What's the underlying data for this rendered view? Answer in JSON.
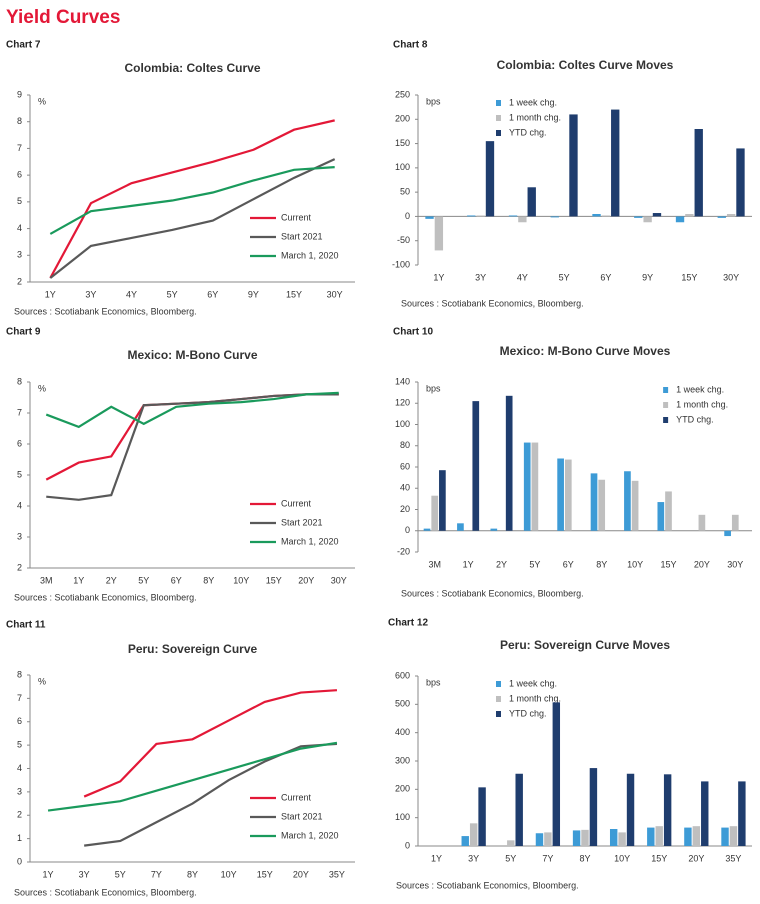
{
  "header": {
    "title": "Yield Curves"
  },
  "chart_data": [
    {
      "type": "line",
      "chart_label": "Chart 7",
      "title": "Colombia:  Coltes Curve",
      "unit": "%",
      "categories": [
        "1Y",
        "3Y",
        "4Y",
        "5Y",
        "6Y",
        "9Y",
        "15Y",
        "30Y"
      ],
      "series": [
        {
          "name": "Current",
          "color": "#e31837",
          "values": [
            2.15,
            4.95,
            5.7,
            6.1,
            6.5,
            6.95,
            7.7,
            8.05
          ]
        },
        {
          "name": "Start 2021",
          "color": "#595959",
          "values": [
            2.15,
            3.35,
            3.65,
            3.95,
            4.3,
            5.1,
            5.9,
            6.6
          ]
        },
        {
          "name": "March 1, 2020",
          "color": "#1a9a5c",
          "values": [
            3.8,
            4.65,
            4.85,
            5.05,
            5.35,
            5.8,
            6.2,
            6.3
          ]
        }
      ],
      "ylim": [
        2,
        9
      ],
      "yticks": [
        2,
        3,
        4,
        5,
        6,
        7,
        8,
        9
      ],
      "legend": "lower right",
      "source": "Sources : Scotiabank Economics, Bloomberg."
    },
    {
      "type": "bar",
      "chart_label": "Chart 8",
      "title": "Colombia:  Coltes Curve Moves",
      "unit": "bps",
      "categories": [
        "1Y",
        "3Y",
        "4Y",
        "5Y",
        "6Y",
        "9Y",
        "15Y",
        "30Y"
      ],
      "series": [
        {
          "name": "1 week chg.",
          "color": "#3d9bd6",
          "values": [
            -5,
            2,
            2,
            -2,
            5,
            -3,
            -12,
            -3
          ]
        },
        {
          "name": "1 month chg.",
          "color": "#bfbfbf",
          "values": [
            -70,
            2,
            -12,
            0,
            2,
            -12,
            5,
            5
          ]
        },
        {
          "name": "YTD chg.",
          "color": "#1f3d6e",
          "values": [
            0,
            155,
            60,
            210,
            220,
            7,
            180,
            140
          ]
        }
      ],
      "ylim": [
        -100,
        250
      ],
      "yticks": [
        -100,
        -50,
        0,
        50,
        100,
        150,
        200,
        250
      ],
      "legend": "upper left",
      "source": "Sources : Scotiabank Economics, Bloomberg."
    },
    {
      "type": "line",
      "chart_label": "Chart 9",
      "title": "Mexico:  M-Bono Curve",
      "unit": "%",
      "categories": [
        "3M",
        "1Y",
        "2Y",
        "5Y",
        "6Y",
        "8Y",
        "10Y",
        "15Y",
        "20Y",
        "30Y"
      ],
      "series": [
        {
          "name": "Current",
          "color": "#e31837",
          "values": [
            4.85,
            5.4,
            5.6,
            7.25,
            7.3,
            7.35,
            7.45,
            7.55,
            7.6,
            7.6
          ]
        },
        {
          "name": "Start 2021",
          "color": "#595959",
          "values": [
            4.3,
            4.2,
            4.35,
            7.25,
            7.3,
            7.35,
            7.45,
            7.55,
            7.6,
            7.6
          ]
        },
        {
          "name": "March 1, 2020",
          "color": "#1a9a5c",
          "values": [
            6.95,
            6.55,
            7.2,
            6.65,
            7.2,
            7.3,
            7.35,
            7.45,
            7.6,
            7.65
          ]
        }
      ],
      "ylim": [
        2,
        8
      ],
      "yticks": [
        2,
        3,
        4,
        5,
        6,
        7,
        8
      ],
      "legend": "lower right",
      "source": "Sources : Scotiabank Economics, Bloomberg."
    },
    {
      "type": "bar",
      "chart_label": "Chart 10",
      "title": "Mexico:  M-Bono Curve Moves",
      "unit": "bps",
      "categories": [
        "3M",
        "1Y",
        "2Y",
        "5Y",
        "6Y",
        "8Y",
        "10Y",
        "15Y",
        "20Y",
        "30Y"
      ],
      "series": [
        {
          "name": "1 week chg.",
          "color": "#3d9bd6",
          "values": [
            2,
            7,
            2,
            83,
            68,
            54,
            56,
            27,
            0,
            -5
          ]
        },
        {
          "name": "1 month chg.",
          "color": "#bfbfbf",
          "values": [
            33,
            0,
            0,
            83,
            67,
            48,
            47,
            37,
            15,
            15
          ]
        },
        {
          "name": "YTD chg.",
          "color": "#1f3d6e",
          "values": [
            57,
            122,
            127,
            0,
            0,
            0,
            0,
            0,
            0,
            0
          ]
        }
      ],
      "ylim": [
        -20,
        140
      ],
      "yticks": [
        -20,
        0,
        20,
        40,
        60,
        80,
        100,
        120,
        140
      ],
      "legend": "upper right",
      "source": "Sources : Scotiabank Economics, Bloomberg."
    },
    {
      "type": "line",
      "chart_label": "Chart 11",
      "title": "Peru:  Sovereign Curve",
      "unit": "%",
      "categories": [
        "1Y",
        "3Y",
        "5Y",
        "7Y",
        "8Y",
        "10Y",
        "15Y",
        "20Y",
        "35Y"
      ],
      "series": [
        {
          "name": "Current",
          "color": "#e31837",
          "values": [
            null,
            2.8,
            3.45,
            5.05,
            5.25,
            6.05,
            6.85,
            7.25,
            7.35
          ]
        },
        {
          "name": "Start 2021",
          "color": "#595959",
          "values": [
            null,
            0.7,
            0.9,
            1.7,
            2.5,
            3.5,
            4.3,
            4.95,
            5.05
          ]
        },
        {
          "name": "March 1, 2020",
          "color": "#1a9a5c",
          "values": [
            2.2,
            2.4,
            2.6,
            3.05,
            3.5,
            3.95,
            4.4,
            4.85,
            5.1
          ]
        }
      ],
      "ylim": [
        0,
        8
      ],
      "yticks": [
        0,
        1,
        2,
        3,
        4,
        5,
        6,
        7,
        8
      ],
      "legend": "lower right",
      "source": "Sources : Scotiabank Economics, Bloomberg."
    },
    {
      "type": "bar",
      "chart_label": "Chart 12",
      "title": "Peru:  Sovereign Curve Moves",
      "unit": "bps",
      "categories": [
        "1Y",
        "3Y",
        "5Y",
        "7Y",
        "8Y",
        "10Y",
        "15Y",
        "20Y",
        "35Y"
      ],
      "series": [
        {
          "name": "1 week chg.",
          "color": "#3d9bd6",
          "values": [
            null,
            35,
            0,
            45,
            55,
            60,
            65,
            65,
            65
          ]
        },
        {
          "name": "1 month chg.",
          "color": "#bfbfbf",
          "values": [
            null,
            80,
            20,
            48,
            57,
            48,
            70,
            70,
            70
          ]
        },
        {
          "name": "YTD chg.",
          "color": "#1f3d6e",
          "values": [
            null,
            207,
            255,
            507,
            275,
            255,
            253,
            228,
            228
          ]
        }
      ],
      "ylim": [
        0,
        600
      ],
      "yticks": [
        0,
        100,
        200,
        300,
        400,
        500,
        600
      ],
      "legend": "upper left",
      "source": "Sources : Scotiabank Economics, Bloomberg."
    }
  ]
}
